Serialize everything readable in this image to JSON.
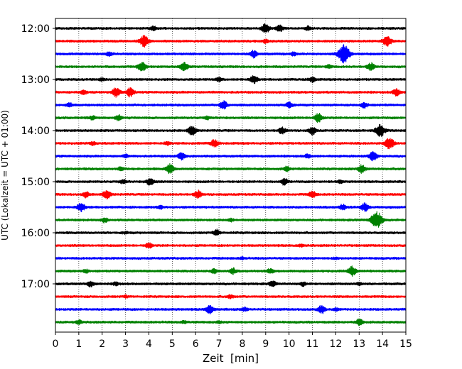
{
  "chart_data": {
    "type": "line",
    "title": "",
    "xlabel": "Zeit  [min]",
    "ylabel": "UTC (Lokalzeit = UTC + 01:00)",
    "xlim": [
      0,
      15
    ],
    "x_ticks": [
      "0",
      "1",
      "2",
      "3",
      "4",
      "5",
      "6",
      "7",
      "8",
      "9",
      "10",
      "11",
      "12",
      "13",
      "14",
      "15"
    ],
    "y_ticks": [
      "12:00",
      "13:00",
      "14:00",
      "15:00",
      "16:00",
      "17:00"
    ],
    "grid": "vertical dotted",
    "trace_interval_min": 15,
    "trace_colors": [
      "#000000",
      "#ff0000",
      "#0000ff",
      "#008000"
    ],
    "traces": [
      {
        "start": "12:00",
        "color": "#000000",
        "events": [
          [
            9.0,
            1.0
          ],
          [
            9.6,
            0.7
          ],
          [
            4.2,
            0.4
          ],
          [
            10.8,
            0.4
          ]
        ]
      },
      {
        "start": "12:15",
        "color": "#ff0000",
        "events": [
          [
            3.8,
            1.2
          ],
          [
            14.2,
            1.2
          ],
          [
            9.0,
            0.4
          ]
        ]
      },
      {
        "start": "12:30",
        "color": "#0000ff",
        "events": [
          [
            12.35,
            2.0
          ],
          [
            8.5,
            0.8
          ],
          [
            2.3,
            0.4
          ],
          [
            10.2,
            0.4
          ]
        ]
      },
      {
        "start": "12:45",
        "color": "#008000",
        "events": [
          [
            3.7,
            1.1
          ],
          [
            5.5,
            0.9
          ],
          [
            13.5,
            0.8
          ],
          [
            11.7,
            0.4
          ]
        ]
      },
      {
        "start": "13:00",
        "color": "#000000",
        "events": [
          [
            8.5,
            0.9
          ],
          [
            11.0,
            0.6
          ],
          [
            7.0,
            0.4
          ],
          [
            2.0,
            0.3
          ]
        ]
      },
      {
        "start": "13:15",
        "color": "#ff0000",
        "events": [
          [
            2.6,
            1.0
          ],
          [
            3.2,
            1.0
          ],
          [
            14.6,
            0.8
          ],
          [
            1.2,
            0.5
          ]
        ]
      },
      {
        "start": "13:30",
        "color": "#0000ff",
        "events": [
          [
            7.2,
            0.9
          ],
          [
            10.0,
            0.7
          ],
          [
            13.2,
            0.6
          ],
          [
            0.6,
            0.4
          ]
        ]
      },
      {
        "start": "13:45",
        "color": "#008000",
        "events": [
          [
            11.25,
            1.0
          ],
          [
            2.7,
            0.6
          ],
          [
            1.6,
            0.5
          ],
          [
            6.5,
            0.3
          ]
        ]
      },
      {
        "start": "14:00",
        "color": "#000000",
        "events": [
          [
            13.9,
            1.4
          ],
          [
            5.85,
            1.0
          ],
          [
            11.0,
            0.8
          ],
          [
            9.7,
            0.7
          ]
        ]
      },
      {
        "start": "14:15",
        "color": "#ff0000",
        "events": [
          [
            14.3,
            1.3
          ],
          [
            6.8,
            0.8
          ],
          [
            1.6,
            0.4
          ],
          [
            4.8,
            0.4
          ]
        ]
      },
      {
        "start": "14:30",
        "color": "#0000ff",
        "events": [
          [
            13.6,
            1.0
          ],
          [
            5.4,
            0.8
          ],
          [
            10.8,
            0.4
          ],
          [
            3.0,
            0.3
          ]
        ]
      },
      {
        "start": "14:45",
        "color": "#008000",
        "events": [
          [
            4.9,
            1.0
          ],
          [
            13.1,
            0.9
          ],
          [
            9.9,
            0.5
          ],
          [
            2.8,
            0.4
          ]
        ]
      },
      {
        "start": "15:00",
        "color": "#000000",
        "events": [
          [
            4.05,
            0.8
          ],
          [
            9.8,
            0.7
          ],
          [
            2.9,
            0.4
          ],
          [
            12.2,
            0.3
          ]
        ]
      },
      {
        "start": "15:15",
        "color": "#ff0000",
        "events": [
          [
            2.2,
            0.9
          ],
          [
            6.1,
            0.8
          ],
          [
            11.0,
            0.7
          ],
          [
            1.3,
            0.6
          ]
        ]
      },
      {
        "start": "15:30",
        "color": "#0000ff",
        "events": [
          [
            1.1,
            1.0
          ],
          [
            13.25,
            0.9
          ],
          [
            12.3,
            0.6
          ],
          [
            4.5,
            0.3
          ]
        ]
      },
      {
        "start": "15:45",
        "color": "#008000",
        "events": [
          [
            13.75,
            1.9
          ],
          [
            2.1,
            0.5
          ],
          [
            7.5,
            0.3
          ]
        ]
      },
      {
        "start": "16:00",
        "color": "#000000",
        "events": [
          [
            6.9,
            0.6
          ],
          [
            3.0,
            0.2
          ]
        ]
      },
      {
        "start": "16:15",
        "color": "#ff0000",
        "events": [
          [
            4.0,
            0.6
          ],
          [
            10.5,
            0.2
          ]
        ]
      },
      {
        "start": "16:30",
        "color": "#0000ff",
        "events": [
          [
            8.0,
            0.2
          ],
          [
            12.0,
            0.2
          ]
        ]
      },
      {
        "start": "16:45",
        "color": "#008000",
        "events": [
          [
            12.7,
            1.0
          ],
          [
            7.6,
            0.6
          ],
          [
            6.8,
            0.5
          ],
          [
            9.2,
            0.5
          ],
          [
            1.3,
            0.4
          ]
        ]
      },
      {
        "start": "17:00",
        "color": "#000000",
        "events": [
          [
            1.5,
            0.6
          ],
          [
            9.3,
            0.6
          ],
          [
            2.6,
            0.4
          ],
          [
            10.6,
            0.4
          ],
          [
            13.0,
            0.3
          ]
        ]
      },
      {
        "start": "17:15",
        "color": "#ff0000",
        "events": [
          [
            7.5,
            0.4
          ],
          [
            3.0,
            0.2
          ]
        ]
      },
      {
        "start": "17:30",
        "color": "#0000ff",
        "events": [
          [
            6.6,
            0.9
          ],
          [
            11.4,
            0.8
          ],
          [
            8.1,
            0.4
          ],
          [
            12.0,
            0.3
          ]
        ]
      },
      {
        "start": "17:45",
        "color": "#008000",
        "events": [
          [
            13.0,
            0.7
          ],
          [
            1.0,
            0.4
          ],
          [
            5.5,
            0.3
          ],
          [
            7.0,
            0.2
          ]
        ]
      }
    ]
  }
}
